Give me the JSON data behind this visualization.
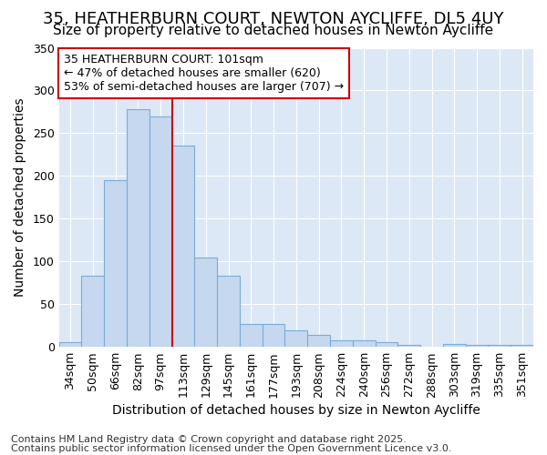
{
  "title1": "35, HEATHERBURN COURT, NEWTON AYCLIFFE, DL5 4UY",
  "title2": "Size of property relative to detached houses in Newton Aycliffe",
  "xlabel": "Distribution of detached houses by size in Newton Aycliffe",
  "ylabel": "Number of detached properties",
  "categories": [
    "34sqm",
    "50sqm",
    "66sqm",
    "82sqm",
    "97sqm",
    "113sqm",
    "129sqm",
    "145sqm",
    "161sqm",
    "177sqm",
    "193sqm",
    "208sqm",
    "224sqm",
    "240sqm",
    "256sqm",
    "272sqm",
    "288sqm",
    "303sqm",
    "319sqm",
    "335sqm",
    "351sqm"
  ],
  "values": [
    5,
    83,
    195,
    278,
    270,
    235,
    105,
    83,
    27,
    27,
    19,
    14,
    8,
    8,
    5,
    2,
    0,
    3,
    2,
    2,
    2
  ],
  "bar_color": "#c5d8f0",
  "bar_edge_color": "#7aadd4",
  "vline_x": 4.5,
  "vline_color": "#cc0000",
  "annotation_line1": "35 HEATHERBURN COURT: 101sqm",
  "annotation_line2": "← 47% of detached houses are smaller (620)",
  "annotation_line3": "53% of semi-detached houses are larger (707) →",
  "annotation_box_color": "#ffffff",
  "annotation_box_edge": "#cc0000",
  "ylim": [
    0,
    350
  ],
  "yticks": [
    0,
    50,
    100,
    150,
    200,
    250,
    300,
    350
  ],
  "plot_bg_color": "#dce8f5",
  "fig_bg_color": "#ffffff",
  "grid_color": "#ffffff",
  "footer1": "Contains HM Land Registry data © Crown copyright and database right 2025.",
  "footer2": "Contains public sector information licensed under the Open Government Licence v3.0.",
  "title_fontsize": 13,
  "subtitle_fontsize": 11,
  "axis_label_fontsize": 10,
  "tick_fontsize": 9,
  "annotation_fontsize": 9,
  "footer_fontsize": 8
}
